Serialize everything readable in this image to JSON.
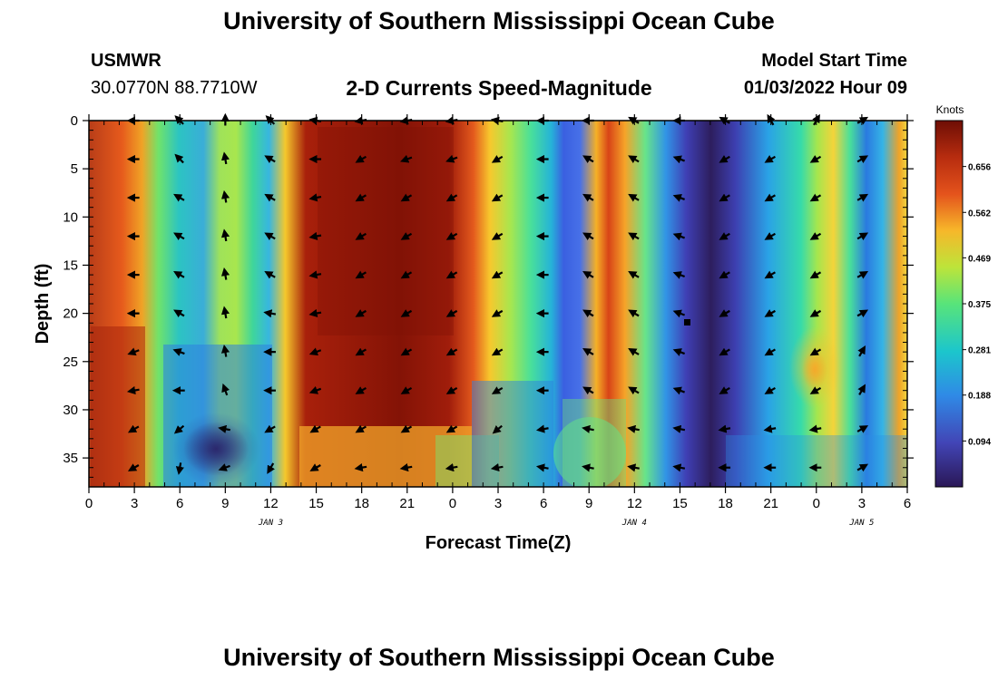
{
  "header": {
    "title": "University of Southern Mississippi Ocean Cube",
    "station": "USMWR",
    "coordinates": "30.0770N  88.7710W",
    "subtitle": "2-D Currents Speed-Magnitude",
    "model_start_label": "Model Start Time",
    "model_start_value": "01/03/2022 Hour 09"
  },
  "footer": {
    "title": "University of Southern Mississippi Ocean Cube"
  },
  "chart_data": {
    "type": "heatmap",
    "title": "2-D Currents Speed-Magnitude",
    "xlabel": "Forecast Time(Z)",
    "ylabel": "Depth (ft)",
    "xlim": [
      0,
      54
    ],
    "ylim": [
      0,
      38
    ],
    "x_ticks": [
      0,
      3,
      6,
      9,
      12,
      15,
      18,
      21,
      24,
      27,
      30,
      33,
      36,
      39,
      42,
      45,
      48,
      51,
      54
    ],
    "x_tick_labels": [
      "0",
      "3",
      "6",
      "9",
      "12",
      "15",
      "18",
      "21",
      "0",
      "3",
      "6",
      "9",
      "12",
      "15",
      "18",
      "21",
      "0",
      "3",
      "6"
    ],
    "y_ticks": [
      0,
      5,
      10,
      15,
      20,
      25,
      30,
      35
    ],
    "y_tick_labels": [
      "0",
      "5",
      "10",
      "15",
      "20",
      "25",
      "30",
      "35"
    ],
    "date_labels": [
      {
        "x": 12,
        "label": "JAN 3"
      },
      {
        "x": 36,
        "label": "JAN 4"
      },
      {
        "x": 51,
        "label": "JAN 5"
      }
    ],
    "colorbar": {
      "title": "Knots",
      "min": 0.0,
      "max": 0.75,
      "ticks": [
        0.656,
        0.562,
        0.469,
        0.375,
        0.281,
        0.188,
        0.094
      ],
      "tick_labels": [
        "0.656",
        "0.562",
        "0.469",
        "0.375",
        "0.281",
        "0.188",
        "0.094"
      ]
    },
    "arrow_times": [
      3,
      6,
      9,
      12,
      15,
      18,
      21,
      24,
      27,
      30,
      33,
      36,
      39,
      42,
      45,
      48,
      51
    ],
    "arrow_depths": [
      0,
      4,
      8,
      12,
      16,
      20,
      24,
      28,
      32,
      36
    ],
    "arrow_directions_deg": [
      [
        0,
        45,
        90,
        45,
        10,
        -10,
        -10,
        -10,
        10,
        0,
        0,
        30,
        0,
        30,
        60,
        120,
        150
      ],
      [
        0,
        45,
        80,
        30,
        0,
        -30,
        -20,
        -20,
        -30,
        0,
        30,
        30,
        20,
        -30,
        -30,
        -30,
        150
      ],
      [
        0,
        30,
        80,
        30,
        -10,
        -30,
        -30,
        -30,
        -30,
        0,
        30,
        30,
        20,
        -30,
        -30,
        -30,
        150
      ],
      [
        0,
        30,
        80,
        30,
        -10,
        -30,
        -30,
        -30,
        -30,
        0,
        30,
        30,
        20,
        -30,
        -30,
        -30,
        150
      ],
      [
        0,
        30,
        80,
        30,
        -10,
        -30,
        -30,
        -30,
        -30,
        0,
        30,
        30,
        20,
        -30,
        -30,
        -30,
        150
      ],
      [
        0,
        30,
        80,
        10,
        -10,
        -30,
        -30,
        -30,
        -30,
        0,
        30,
        30,
        20,
        -30,
        -30,
        -30,
        150
      ],
      [
        -20,
        20,
        80,
        0,
        -20,
        -30,
        -30,
        -30,
        -30,
        0,
        30,
        30,
        20,
        -30,
        -30,
        -30,
        120
      ],
      [
        -10,
        0,
        70,
        0,
        -20,
        -30,
        -30,
        -30,
        -30,
        0,
        30,
        30,
        20,
        -30,
        -30,
        -30,
        120
      ],
      [
        -30,
        -40,
        10,
        -30,
        -30,
        -30,
        -30,
        -30,
        -40,
        -10,
        10,
        10,
        10,
        -10,
        -10,
        -10,
        150
      ],
      [
        -30,
        -80,
        -20,
        -60,
        -30,
        -10,
        -10,
        -10,
        -10,
        10,
        10,
        10,
        10,
        0,
        0,
        0,
        150
      ]
    ]
  }
}
